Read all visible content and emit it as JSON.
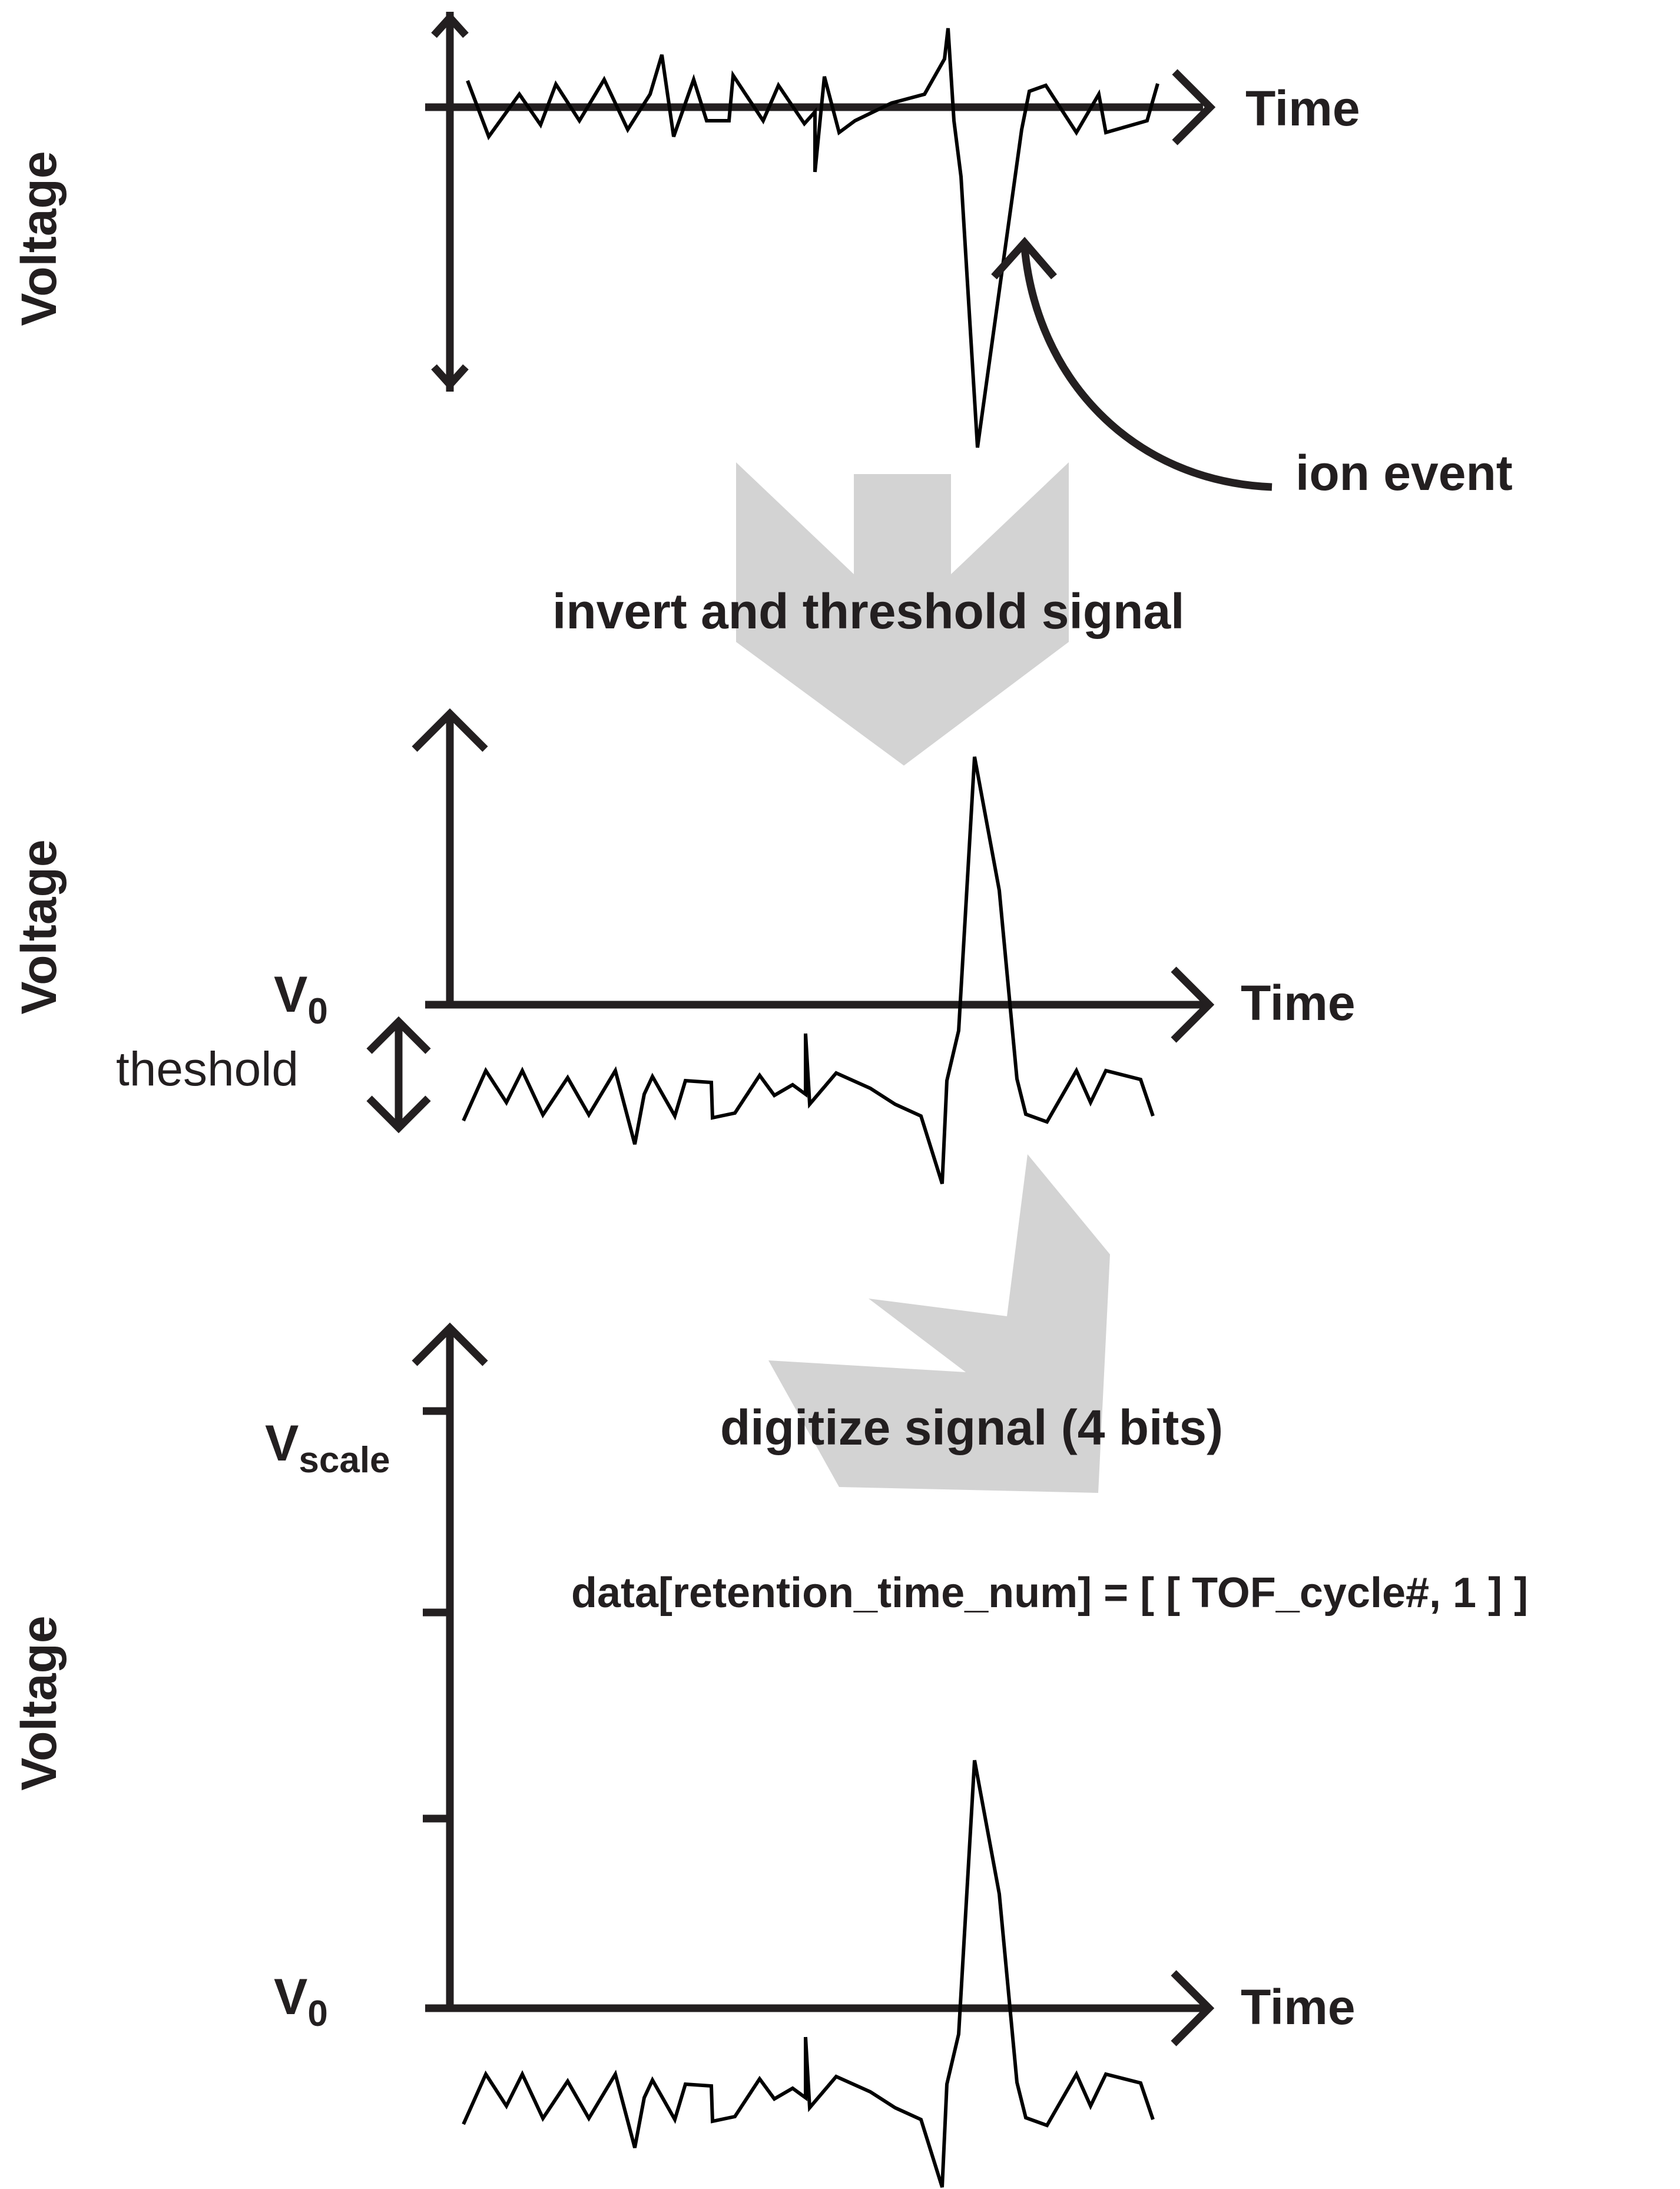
{
  "panels": {
    "raw": {
      "y_label": "Voltage",
      "x_label": "Time",
      "annotation": "ion event"
    },
    "threshold": {
      "y_label": "Voltage",
      "x_label": "Time",
      "v0_main": "V",
      "v0_sub": "0",
      "threshold_label": "theshold"
    },
    "digitized": {
      "y_label": "Voltage",
      "x_label": "Time",
      "v0_main": "V",
      "v0_sub": "0",
      "vscale_main": "V",
      "vscale_sub": "scale",
      "tick_count": 3
    }
  },
  "steps": {
    "step1": "invert and threshold signal",
    "step2": "digitize signal (4 bits)"
  },
  "code_line": "data[retention_time_num] = [ [ TOF_cycle#, 1 ] ]",
  "colors": {
    "ink": "#231f20",
    "signal": "#000000",
    "arrow_fill": "#d3d3d3"
  }
}
